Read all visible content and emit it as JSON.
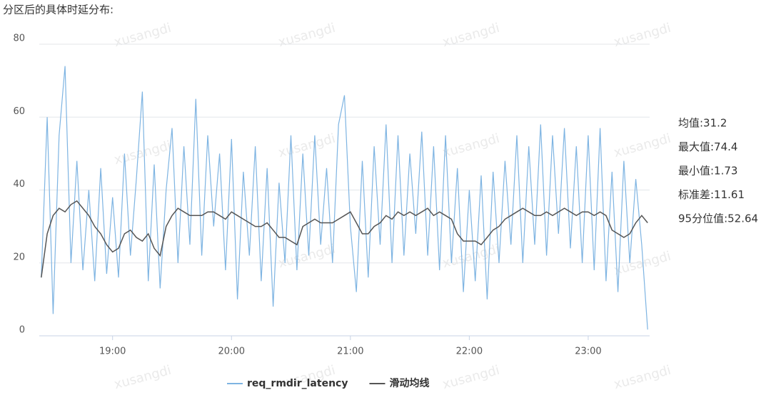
{
  "chart_data": {
    "type": "line",
    "title": "分区后的具体时延分布:",
    "watermark": "xusangdi",
    "x": [
      "18:24",
      "18:27",
      "18:30",
      "18:33",
      "18:36",
      "18:39",
      "18:42",
      "18:45",
      "18:48",
      "18:51",
      "18:54",
      "18:57",
      "19:00",
      "19:03",
      "19:06",
      "19:09",
      "19:12",
      "19:15",
      "19:18",
      "19:21",
      "19:24",
      "19:27",
      "19:30",
      "19:33",
      "19:36",
      "19:39",
      "19:42",
      "19:45",
      "19:48",
      "19:51",
      "19:54",
      "19:57",
      "20:00",
      "20:03",
      "20:06",
      "20:09",
      "20:12",
      "20:15",
      "20:18",
      "20:21",
      "20:24",
      "20:27",
      "20:30",
      "20:33",
      "20:36",
      "20:39",
      "20:42",
      "20:45",
      "20:48",
      "20:51",
      "20:54",
      "20:57",
      "21:00",
      "21:03",
      "21:06",
      "21:09",
      "21:12",
      "21:15",
      "21:18",
      "21:21",
      "21:24",
      "21:27",
      "21:30",
      "21:33",
      "21:36",
      "21:39",
      "21:42",
      "21:45",
      "21:48",
      "21:51",
      "21:54",
      "21:57",
      "22:00",
      "22:03",
      "22:06",
      "22:09",
      "22:12",
      "22:15",
      "22:18",
      "22:21",
      "22:24",
      "22:27",
      "22:30",
      "22:33",
      "22:36",
      "22:39",
      "22:42",
      "22:45",
      "22:48",
      "22:51",
      "22:54",
      "22:57",
      "23:00",
      "23:03",
      "23:06",
      "23:09",
      "23:12",
      "23:15",
      "23:18",
      "23:21",
      "23:24",
      "23:27",
      "23:30"
    ],
    "series": [
      {
        "name": "req_rmdir_latency",
        "color": "#7eb4e2",
        "values": [
          16,
          60,
          6,
          55,
          74,
          20,
          48,
          18,
          40,
          15,
          46,
          17,
          38,
          16,
          50,
          22,
          43,
          67,
          15,
          47,
          13,
          40,
          57,
          20,
          52,
          25,
          65,
          22,
          55,
          30,
          50,
          18,
          54,
          10,
          45,
          22,
          52,
          15,
          46,
          8,
          42,
          20,
          55,
          18,
          50,
          22,
          55,
          25,
          46,
          20,
          58,
          66,
          30,
          12,
          48,
          16,
          52,
          25,
          58,
          20,
          55,
          22,
          50,
          28,
          56,
          22,
          52,
          18,
          55,
          20,
          46,
          12,
          40,
          15,
          44,
          10,
          45,
          20,
          48,
          25,
          55,
          20,
          52,
          25,
          58,
          22,
          55,
          28,
          57,
          24,
          52,
          20,
          55,
          18,
          57,
          15,
          45,
          12,
          48,
          20,
          43,
          25,
          1.73
        ]
      },
      {
        "name": "滑动均线",
        "color": "#555555",
        "values": [
          16,
          28,
          33,
          35,
          34,
          36,
          37,
          35,
          33,
          30,
          28,
          25,
          23,
          24,
          28,
          29,
          27,
          26,
          28,
          24,
          22,
          30,
          33,
          35,
          34,
          33,
          33,
          33,
          34,
          34,
          33,
          32,
          34,
          33,
          32,
          31,
          30,
          30,
          31,
          29,
          27,
          27,
          26,
          25,
          30,
          31,
          32,
          31,
          31,
          31,
          32,
          33,
          34,
          31,
          28,
          28,
          30,
          31,
          33,
          32,
          34,
          33,
          34,
          33,
          34,
          35,
          33,
          34,
          33,
          32,
          28,
          26,
          26,
          26,
          25,
          27,
          29,
          30,
          32,
          33,
          34,
          35,
          34,
          33,
          33,
          34,
          33,
          34,
          35,
          34,
          33,
          34,
          34,
          33,
          34,
          33,
          29,
          28,
          27,
          28,
          31,
          33,
          31
        ]
      }
    ],
    "xlim": [
      "18:23",
      "23:31"
    ],
    "xticks": [
      "19:00",
      "20:00",
      "21:00",
      "22:00",
      "23:00"
    ],
    "ylim": [
      0,
      80
    ],
    "yticks": [
      0,
      20,
      40,
      60,
      80
    ],
    "grid": true,
    "annotations": [
      "均值:31.2",
      "最大值:74.4",
      "最小值:1.73",
      "标准差:11.61",
      "95分位值:52.64"
    ]
  }
}
